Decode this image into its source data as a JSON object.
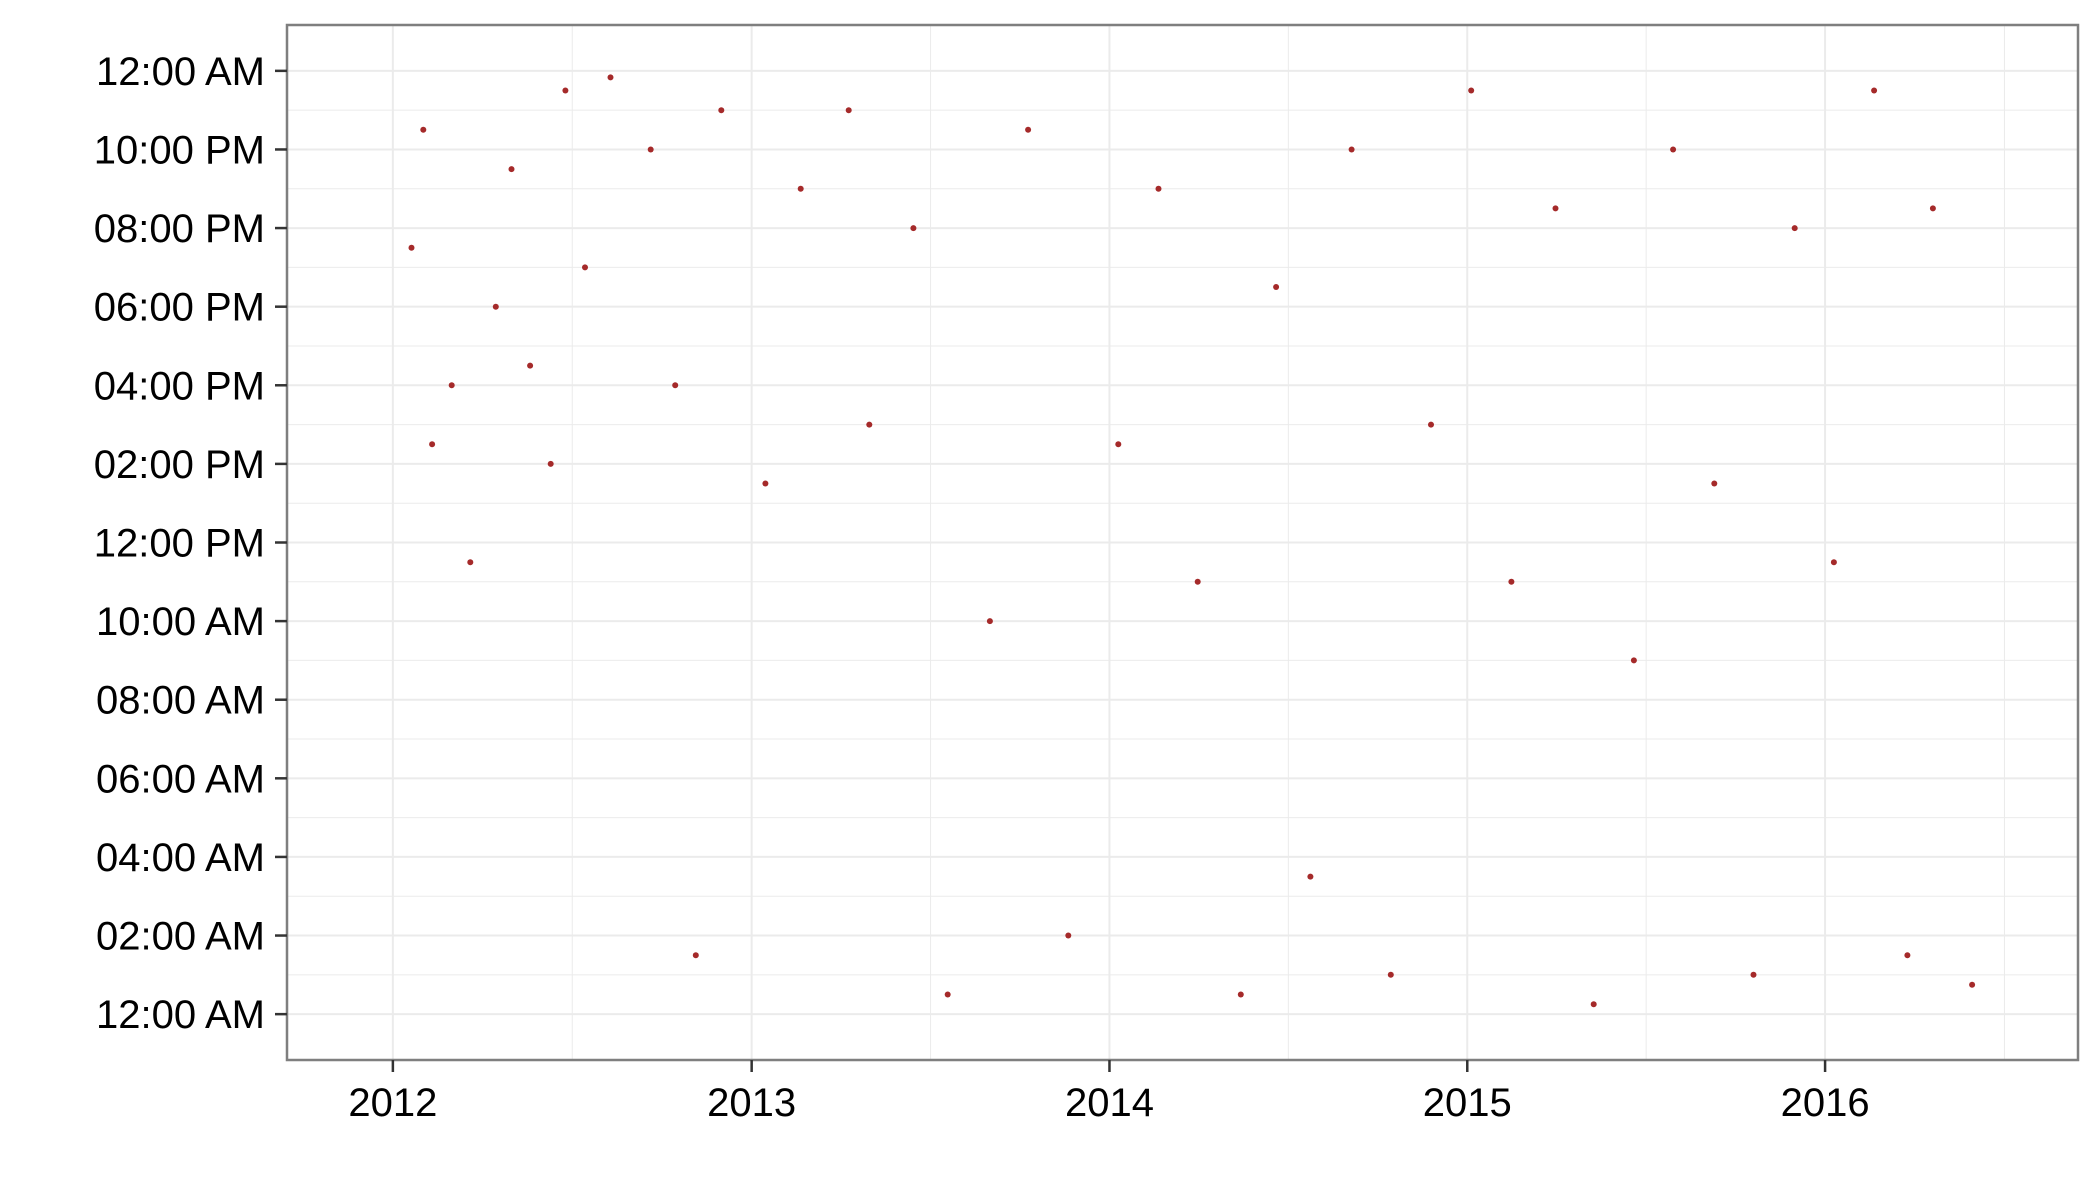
{
  "chart_data": {
    "type": "scatter",
    "title": "",
    "xlabel": "",
    "ylabel": "",
    "x_axis": {
      "kind": "date",
      "range": [
        "2011-09-15",
        "2016-09-15"
      ],
      "ticks": [
        {
          "value": "2012-01-01",
          "label": "2012"
        },
        {
          "value": "2013-01-01",
          "label": "2013"
        },
        {
          "value": "2014-01-01",
          "label": "2014"
        },
        {
          "value": "2015-01-01",
          "label": "2015"
        },
        {
          "value": "2016-01-01",
          "label": "2016"
        }
      ]
    },
    "y_axis": {
      "kind": "time_of_day",
      "range": [
        "-01:10",
        "25:10"
      ],
      "ticks": [
        {
          "value": "00:00",
          "label": "12:00 AM"
        },
        {
          "value": "02:00",
          "label": "02:00 AM"
        },
        {
          "value": "04:00",
          "label": "04:00 AM"
        },
        {
          "value": "06:00",
          "label": "06:00 AM"
        },
        {
          "value": "08:00",
          "label": "08:00 AM"
        },
        {
          "value": "10:00",
          "label": "10:00 AM"
        },
        {
          "value": "12:00",
          "label": "12:00 PM"
        },
        {
          "value": "14:00",
          "label": "02:00 PM"
        },
        {
          "value": "16:00",
          "label": "04:00 PM"
        },
        {
          "value": "18:00",
          "label": "06:00 PM"
        },
        {
          "value": "20:00",
          "label": "08:00 PM"
        },
        {
          "value": "22:00",
          "label": "10:00 PM"
        },
        {
          "value": "24:00",
          "label": "12:00 AM"
        }
      ]
    },
    "grid": true,
    "legend": "none",
    "colors": {
      "points": "#A52A2A",
      "grid": "#EBEBEB",
      "panel_border": "#7F7F7F",
      "axis_ticks": "#333333"
    },
    "series": [
      {
        "x": [
          "2012-01-20",
          "2012-02-01",
          "2012-02-10",
          "2012-03-01",
          "2012-03-20",
          "2012-04-15",
          "2012-05-01",
          "2012-05-20",
          "2012-06-10",
          "2012-06-25",
          "2012-07-15",
          "2012-08-10",
          "2012-09-20",
          "2012-10-15",
          "2012-11-05",
          "2012-12-01",
          "2013-01-15",
          "2013-02-20",
          "2013-04-10",
          "2013-05-01",
          "2013-06-15",
          "2013-07-20",
          "2013-09-01",
          "2013-10-10",
          "2013-11-20",
          "2014-01-10",
          "2014-02-20",
          "2014-04-01",
          "2014-05-15",
          "2014-06-20",
          "2014-07-25",
          "2014-09-05",
          "2014-10-15",
          "2014-11-25",
          "2015-01-05",
          "2015-02-15",
          "2015-04-01",
          "2015-05-10",
          "2015-06-20",
          "2015-07-30",
          "2015-09-10",
          "2015-10-20",
          "2015-12-01",
          "2016-01-10",
          "2016-02-20",
          "2016-03-25",
          "2016-04-20",
          "2016-05-30"
        ],
        "y": [
          "19:30",
          "22:30",
          "14:30",
          "16:00",
          "11:30",
          "18:00",
          "21:30",
          "16:30",
          "14:00",
          "23:30",
          "19:00",
          "23:50",
          "22:00",
          "16:00",
          "01:30",
          "23:00",
          "13:30",
          "21:00",
          "23:00",
          "15:00",
          "20:00",
          "00:30",
          "10:00",
          "22:30",
          "02:00",
          "14:30",
          "21:00",
          "11:00",
          "00:30",
          "18:30",
          "03:30",
          "22:00",
          "01:00",
          "15:00",
          "23:30",
          "11:00",
          "20:30",
          "00:15",
          "09:00",
          "22:00",
          "13:30",
          "01:00",
          "20:00",
          "11:30",
          "23:30",
          "01:30",
          "20:30",
          "00:45"
        ]
      }
    ]
  }
}
